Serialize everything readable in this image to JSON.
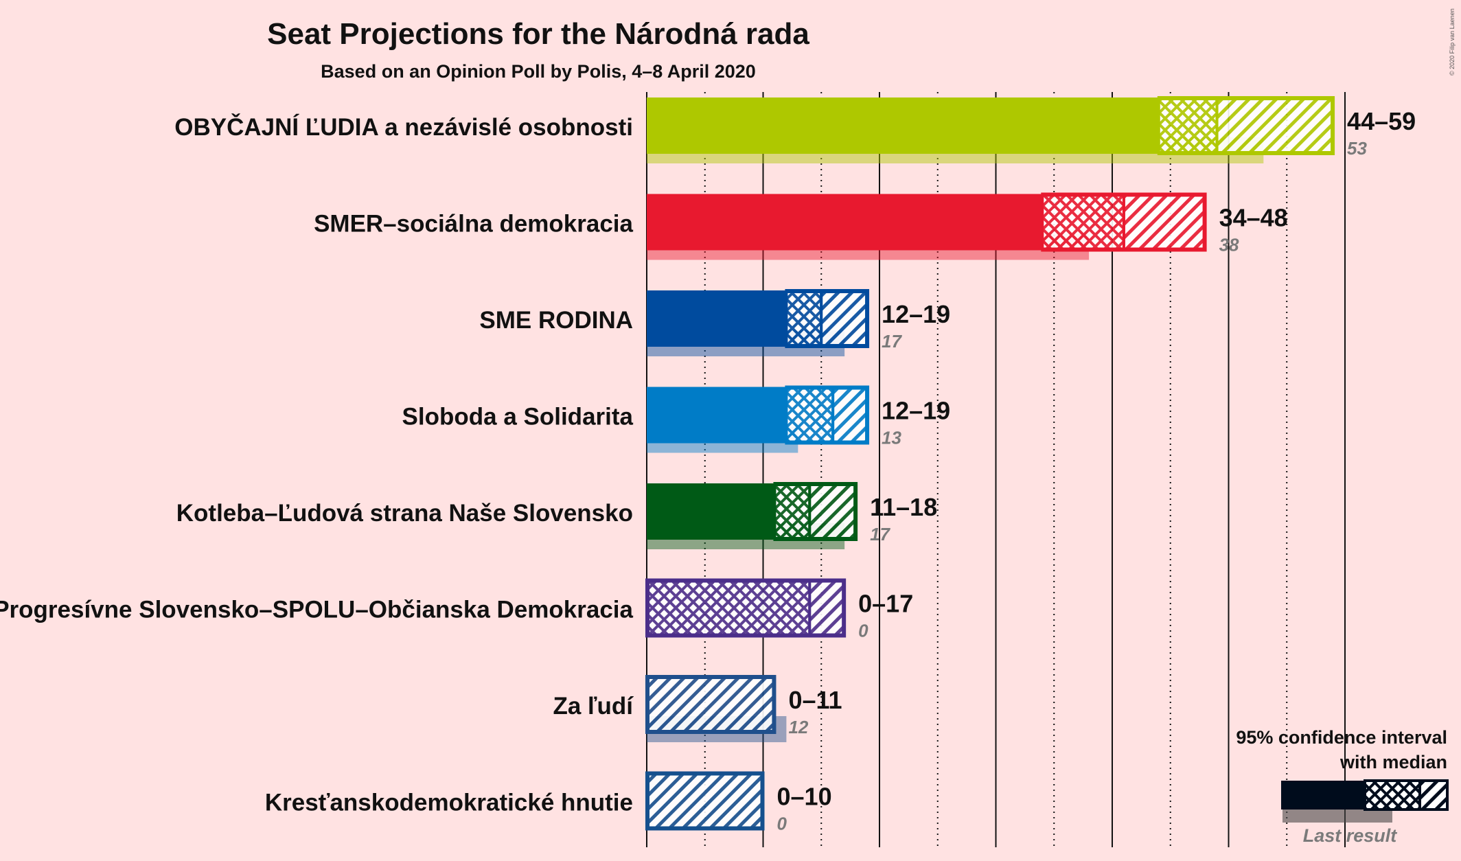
{
  "title": "Seat Projections for the Národná rada",
  "subtitle": "Based on an Opinion Poll by Polis, 4–8 April 2020",
  "copyright": "© 2020 Filip van Laenen",
  "legend": {
    "title_line1": "95% confidence interval",
    "title_line2": "with median",
    "last_result": "Last result"
  },
  "chart_data": {
    "type": "bar",
    "orientation": "horizontal",
    "title": "Seat Projections for the Národná rada",
    "subtitle": "Based on an Opinion Poll by Polis, 4–8 April 2020",
    "xlim": [
      0,
      60
    ],
    "gridlines_every": 5,
    "series": [
      {
        "name": "OBYČAJNÍ ĽUDIA a nezávislé osobnosti",
        "color": "#aec800",
        "low": 44,
        "q_low": 44,
        "median": 49,
        "high": 59,
        "range_text": "44–59",
        "last": 53,
        "last_text": "53"
      },
      {
        "name": "SMER–sociálna demokracia",
        "color": "#e8192f",
        "low": 34,
        "q_low": 34,
        "median": 41,
        "high": 48,
        "range_text": "34–48",
        "last": 38,
        "last_text": "38"
      },
      {
        "name": "SME RODINA",
        "color": "#004b9e",
        "low": 12,
        "q_low": 12,
        "median": 15,
        "high": 19,
        "range_text": "12–19",
        "last": 17,
        "last_text": "17"
      },
      {
        "name": "Sloboda a Solidarita",
        "color": "#007cc7",
        "low": 12,
        "q_low": 12,
        "median": 16,
        "high": 19,
        "range_text": "12–19",
        "last": 13,
        "last_text": "13"
      },
      {
        "name": "Kotleba–Ľudová strana Naše Slovensko",
        "color": "#005a16",
        "low": 11,
        "q_low": 11,
        "median": 14,
        "high": 18,
        "range_text": "11–18",
        "last": 17,
        "last_text": "17"
      },
      {
        "name": "Progresívne Slovensko–SPOLU–Občianska Demokracia",
        "color": "#4b2e8a",
        "low": 0,
        "q_low": 0,
        "median": 14,
        "high": 17,
        "range_text": "0–17",
        "last": 0,
        "last_text": "0"
      },
      {
        "name": "Za ľudí",
        "color": "#1f4f8c",
        "low": 0,
        "q_low": 0,
        "median": 0,
        "high": 11,
        "range_text": "0–11",
        "last": 12,
        "last_text": "12"
      },
      {
        "name": "Kresťanskodemokratické hnutie",
        "color": "#15508e",
        "low": 0,
        "q_low": 0,
        "median": 0,
        "high": 10,
        "range_text": "0–10",
        "last": 0,
        "last_text": "0"
      }
    ]
  }
}
